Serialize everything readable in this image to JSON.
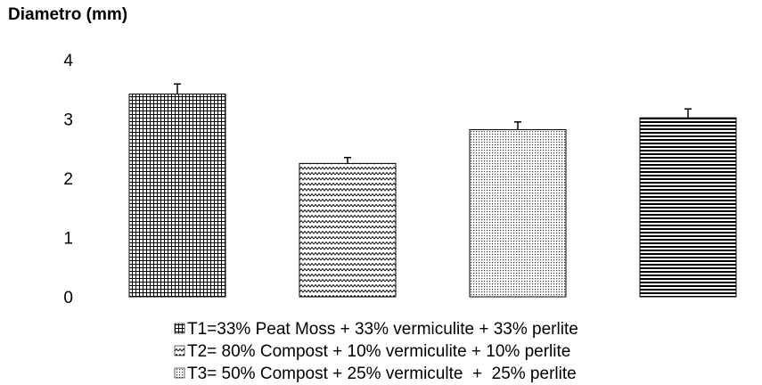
{
  "chart_data": {
    "type": "bar",
    "title": "",
    "xlabel": "",
    "ylabel": "Diametro (mm)",
    "ylim": [
      0,
      4
    ],
    "yticks": [
      "0",
      "1",
      "2",
      "3",
      "4"
    ],
    "grid": false,
    "legend_position": "bottom",
    "series": [
      {
        "name": "T1=33% Peat Moss + 33% vermiculite + 33% perlite",
        "value": 3.42,
        "error": 0.17,
        "pattern": "grid"
      },
      {
        "name": "T2= 80% Compost + 10% vermiculite + 10% perlite",
        "value": 2.25,
        "error": 0.1,
        "pattern": "zigzag"
      },
      {
        "name": "T3= 50% Compost + 25% vermiculte  +  25% perlite",
        "value": 2.82,
        "error": 0.13,
        "pattern": "dots"
      },
      {
        "name": "",
        "value": 3.02,
        "error": 0.15,
        "pattern": "hlines"
      }
    ],
    "colors": {
      "ink": "#000000",
      "background": "#ffffff"
    }
  }
}
